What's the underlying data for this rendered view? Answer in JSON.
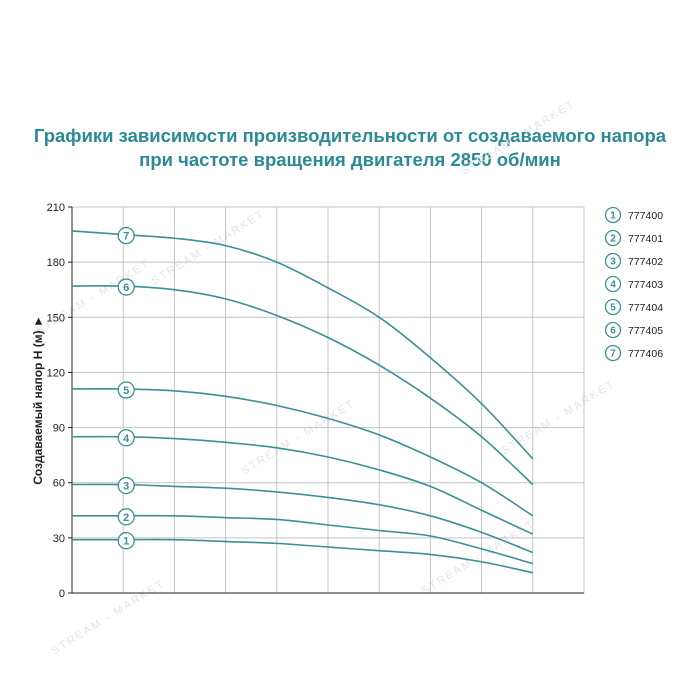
{
  "colors": {
    "title": "#2a8b96",
    "curve": "#3b8f97",
    "grid": "#bfc4c6",
    "axis": "#222222"
  },
  "chart_data": {
    "type": "line",
    "title": "Графики зависимости производительности от создаваемого напора",
    "subtitle": "при частоте вращения двигателя 2850 об/мин",
    "ylabel": "Создаваемый напор Н (м) ►",
    "xlabel": "",
    "ylim": [
      0,
      210
    ],
    "yticks": [
      0,
      30,
      60,
      90,
      120,
      150,
      180,
      210
    ],
    "xlim": [
      0,
      10
    ],
    "x_gridlines": 10,
    "grid": true,
    "legend_position": "right",
    "series": [
      {
        "id": "1",
        "name": "777400",
        "x": [
          0,
          1,
          2,
          3,
          4,
          5,
          6,
          7,
          8,
          9
        ],
        "values": [
          29,
          29,
          29,
          28,
          27,
          25,
          23,
          21,
          17,
          11
        ]
      },
      {
        "id": "2",
        "name": "777401",
        "x": [
          0,
          1,
          2,
          3,
          4,
          5,
          6,
          7,
          8,
          9
        ],
        "values": [
          42,
          42,
          42,
          41,
          40,
          37,
          34,
          31,
          24,
          16
        ]
      },
      {
        "id": "3",
        "name": "777402",
        "x": [
          0,
          1,
          2,
          3,
          4,
          5,
          6,
          7,
          8,
          9
        ],
        "values": [
          59,
          59,
          58,
          57,
          55,
          52,
          48,
          42,
          33,
          22
        ]
      },
      {
        "id": "4",
        "name": "777403",
        "x": [
          0,
          1,
          2,
          3,
          4,
          5,
          6,
          7,
          8,
          9
        ],
        "values": [
          85,
          85,
          84,
          82,
          79,
          74,
          67,
          58,
          45,
          32
        ]
      },
      {
        "id": "5",
        "name": "777404",
        "x": [
          0,
          1,
          2,
          3,
          4,
          5,
          6,
          7,
          8,
          9
        ],
        "values": [
          111,
          111,
          110,
          107,
          102,
          95,
          86,
          74,
          60,
          42
        ]
      },
      {
        "id": "6",
        "name": "777405",
        "x": [
          0,
          1,
          2,
          3,
          4,
          5,
          6,
          7,
          8,
          9
        ],
        "values": [
          167,
          167,
          165,
          160,
          151,
          139,
          124,
          106,
          85,
          59
        ]
      },
      {
        "id": "7",
        "name": "777406",
        "x": [
          0,
          1,
          2,
          3,
          4,
          5,
          6,
          7,
          8,
          9
        ],
        "values": [
          197,
          195,
          193,
          189,
          180,
          166,
          150,
          128,
          103,
          73
        ]
      }
    ],
    "curve_label_x": 1
  },
  "watermark": "STREAM - MARKET"
}
